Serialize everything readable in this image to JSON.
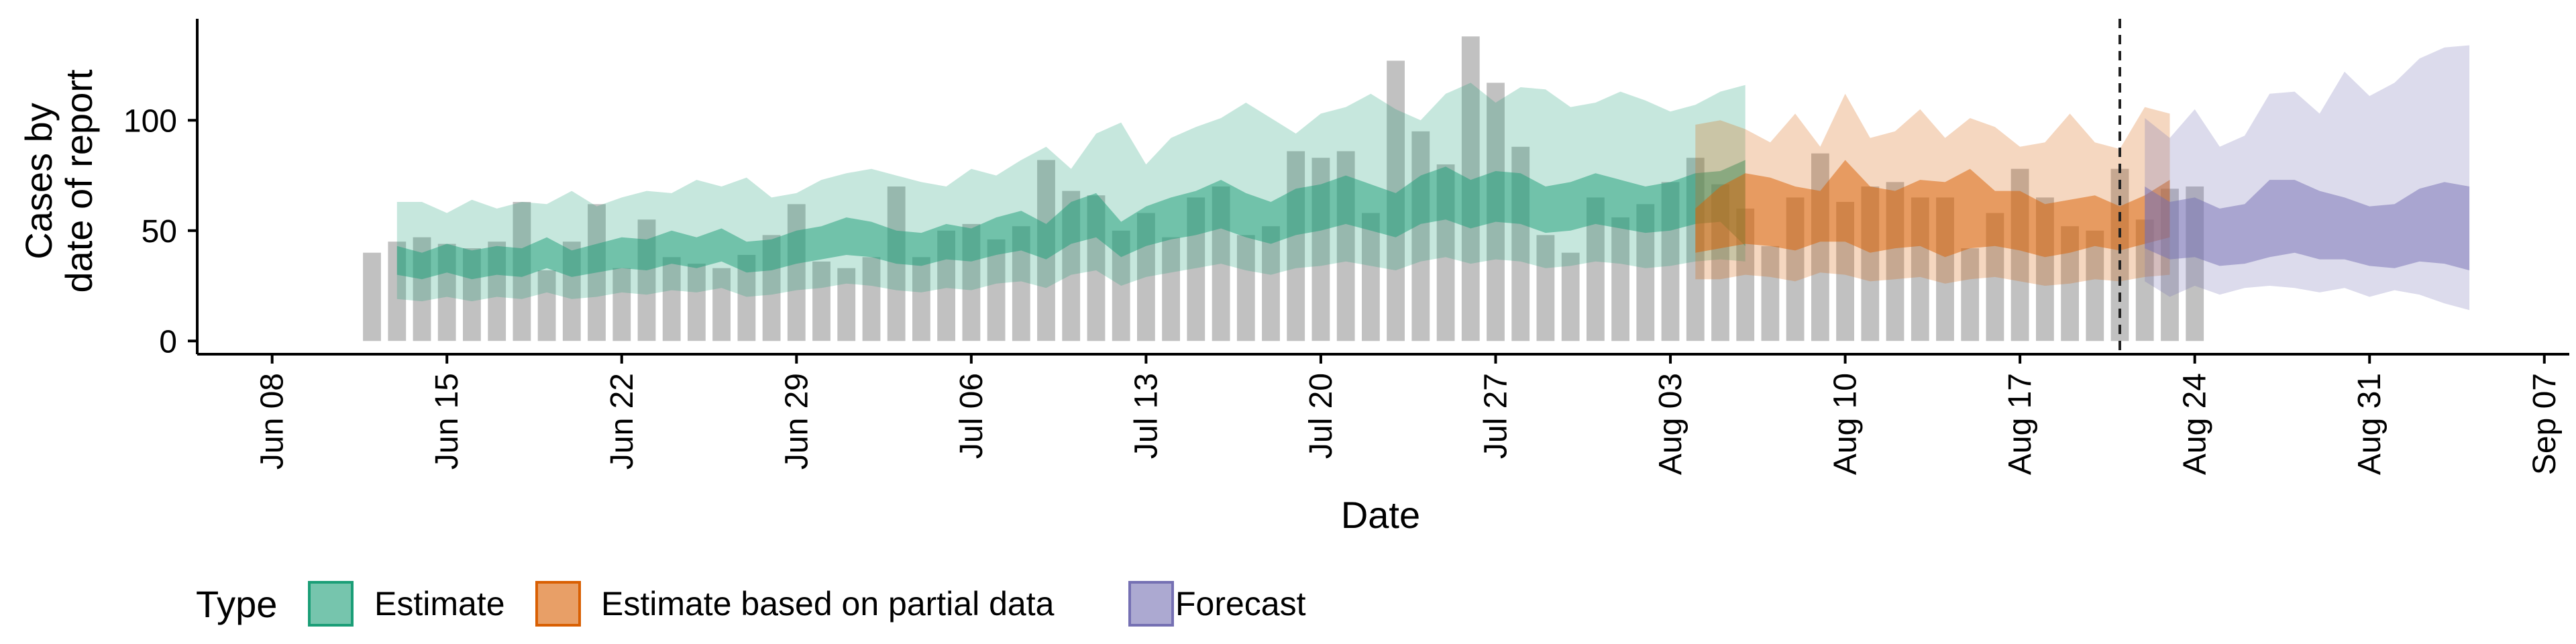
{
  "chart_data": {
    "type": "area",
    "title": "",
    "xlabel": "Date",
    "ylabel": [
      "Cases by",
      "date of report"
    ],
    "x_ticks": [
      "Jun 08",
      "Jun 15",
      "Jun 22",
      "Jun 29",
      "Jul 06",
      "Jul 13",
      "Jul 20",
      "Jul 27",
      "Aug 03",
      "Aug 10",
      "Aug 17",
      "Aug 24",
      "Aug 31",
      "Sep 07"
    ],
    "y_ticks": [
      0,
      50,
      100
    ],
    "xlim": [
      "2020-06-05",
      "2020-09-08"
    ],
    "ylim": [
      -6,
      146
    ],
    "grid": false,
    "legend_position": "bottom-left",
    "legend_title": "Type",
    "legend_items": [
      {
        "label": "Estimate",
        "color": "#1b9e77"
      },
      {
        "label": "Estimate based on partial data",
        "color": "#d95f02"
      },
      {
        "label": "Forecast",
        "color": "#7570b3"
      }
    ],
    "bar_color": "#bebebe",
    "vline_date": "2020-08-21",
    "reported_cases": {
      "start_date": "2020-06-12",
      "values": [
        40,
        45,
        47,
        44,
        42,
        45,
        63,
        32,
        45,
        62,
        33,
        55,
        38,
        35,
        33,
        39,
        48,
        62,
        36,
        33,
        38,
        70,
        38,
        50,
        53,
        46,
        52,
        82,
        68,
        66,
        50,
        58,
        47,
        65,
        70,
        48,
        52,
        86,
        83,
        86,
        58,
        127,
        95,
        80,
        138,
        117,
        88,
        48,
        40,
        65,
        56,
        62,
        72,
        83,
        71,
        60,
        43,
        65,
        85,
        63,
        70,
        72,
        65,
        65,
        42,
        58,
        78,
        65,
        52,
        50,
        78,
        55,
        69,
        70
      ]
    },
    "series": [
      {
        "name": "Estimate",
        "color": "#1b9e77",
        "start_date": "2020-06-13",
        "lower_90": [
          19,
          18,
          20,
          18,
          20,
          19,
          22,
          19,
          20,
          22,
          21,
          23,
          22,
          24,
          20,
          21,
          23,
          24,
          26,
          25,
          23,
          22,
          24,
          23,
          26,
          27,
          24,
          30,
          32,
          25,
          29,
          31,
          33,
          35,
          32,
          30,
          33,
          34,
          36,
          34,
          32,
          36,
          38,
          35,
          37,
          36,
          33,
          34,
          36,
          35,
          33,
          34,
          36,
          37,
          36
        ],
        "lower_50": [
          30,
          28,
          31,
          28,
          30,
          29,
          33,
          29,
          31,
          33,
          32,
          35,
          33,
          36,
          31,
          32,
          35,
          37,
          39,
          38,
          35,
          34,
          37,
          36,
          39,
          41,
          37,
          44,
          47,
          38,
          43,
          46,
          48,
          51,
          47,
          44,
          48,
          50,
          53,
          50,
          47,
          53,
          55,
          51,
          54,
          53,
          49,
          50,
          53,
          51,
          49,
          50,
          53,
          54,
          43
        ],
        "upper_50": [
          43,
          40,
          44,
          41,
          43,
          42,
          47,
          41,
          44,
          47,
          46,
          50,
          47,
          51,
          45,
          46,
          50,
          52,
          56,
          54,
          50,
          49,
          53,
          51,
          56,
          59,
          53,
          63,
          67,
          54,
          61,
          65,
          68,
          73,
          67,
          63,
          69,
          71,
          75,
          71,
          67,
          75,
          79,
          73,
          77,
          76,
          70,
          72,
          76,
          73,
          70,
          72,
          76,
          77,
          82
        ],
        "upper_90": [
          63,
          63,
          58,
          64,
          60,
          63,
          62,
          68,
          61,
          65,
          68,
          67,
          73,
          70,
          74,
          65,
          67,
          73,
          76,
          78,
          75,
          72,
          70,
          78,
          75,
          82,
          88,
          78,
          94,
          99,
          80,
          92,
          97,
          101,
          108,
          101,
          94,
          103,
          106,
          112,
          105,
          100,
          112,
          117,
          108,
          115,
          114,
          106,
          108,
          113,
          109,
          104,
          107,
          113,
          116
        ]
      },
      {
        "name": "Estimate based on partial data",
        "color": "#d95f02",
        "start_date": "2020-08-04",
        "lower_90": [
          28,
          28,
          30,
          29,
          27,
          31,
          30,
          27,
          28,
          29,
          26,
          28,
          29,
          27,
          25,
          26,
          28,
          27,
          29,
          30
        ],
        "lower_50": [
          40,
          42,
          44,
          43,
          41,
          45,
          45,
          40,
          42,
          43,
          38,
          42,
          43,
          41,
          38,
          40,
          43,
          41,
          44,
          47
        ],
        "upper_50": [
          60,
          70,
          76,
          74,
          70,
          68,
          82,
          70,
          68,
          73,
          72,
          78,
          68,
          68,
          62,
          64,
          66,
          61,
          66,
          73
        ],
        "upper_90": [
          98,
          100,
          96,
          90,
          103,
          88,
          112,
          92,
          95,
          105,
          92,
          101,
          97,
          88,
          90,
          103,
          90,
          87,
          106,
          103
        ]
      },
      {
        "name": "Forecast",
        "color": "#7570b3",
        "start_date": "2020-08-22",
        "lower_90": [
          27,
          20,
          25,
          21,
          24,
          25,
          24,
          22,
          24,
          20,
          23,
          21,
          17,
          14
        ],
        "lower_50": [
          42,
          37,
          38,
          34,
          35,
          38,
          40,
          37,
          37,
          34,
          33,
          36,
          35,
          32
        ],
        "upper_50": [
          70,
          63,
          65,
          60,
          62,
          73,
          73,
          68,
          65,
          61,
          62,
          69,
          72,
          70
        ],
        "upper_90": [
          101,
          92,
          105,
          88,
          93,
          112,
          113,
          103,
          122,
          111,
          117,
          128,
          133,
          134
        ]
      }
    ]
  }
}
